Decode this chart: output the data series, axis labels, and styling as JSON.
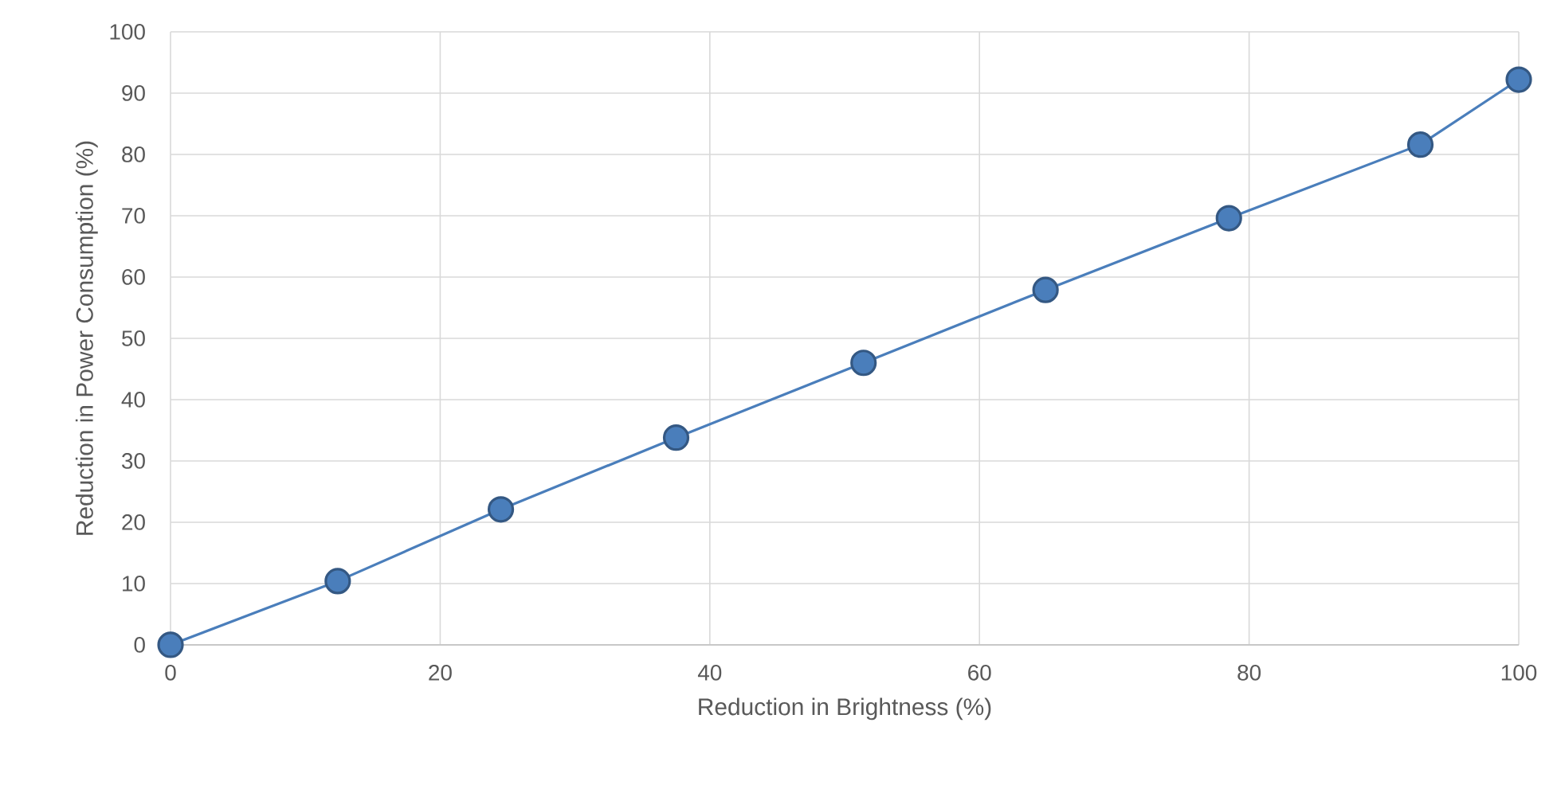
{
  "chart_data": {
    "type": "line",
    "xlabel": "Reduction in Brightness (%)",
    "ylabel": "Reduction in Power Consumption (%)",
    "x": [
      0,
      12.4,
      24.5,
      37.5,
      51.4,
      64.9,
      78.5,
      92.7,
      100
    ],
    "series": [
      {
        "color": "#4a7ebb",
        "values": [
          0,
          10.4,
          22.1,
          33.8,
          46.0,
          57.9,
          69.6,
          81.6,
          92.2
        ]
      }
    ],
    "xlim": [
      0,
      100
    ],
    "ylim": [
      0,
      100
    ],
    "xticks": [
      0,
      20,
      40,
      60,
      80,
      100
    ],
    "yticks": [
      0,
      10,
      20,
      30,
      40,
      50,
      60,
      70,
      80,
      90,
      100
    ],
    "grid": true,
    "marker": "circle",
    "line_style": "solid"
  }
}
